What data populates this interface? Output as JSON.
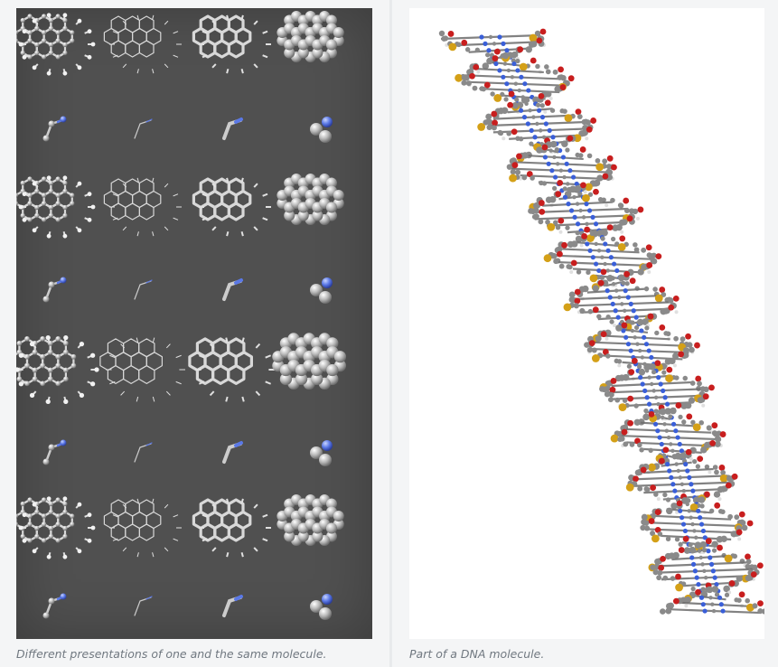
{
  "figures": [
    {
      "name": "molecule-presentations",
      "caption": "Different presentations of one and the same molecule.",
      "background_color": "#505050",
      "grid": {
        "columns": 4,
        "rows": 8,
        "styles": [
          "ball-and-stick",
          "wireframe",
          "licorice",
          "space-filling"
        ]
      }
    },
    {
      "name": "dna-molecule",
      "caption": "Part of a DNA molecule.",
      "background_color": "#ffffff",
      "atom_colors": {
        "carbon": "#8a8a8a",
        "oxygen": "#c81e1e",
        "nitrogen": "#3a5fd8",
        "phosphorus": "#d4a017",
        "hydrogen": "#e8e8e8"
      }
    }
  ]
}
